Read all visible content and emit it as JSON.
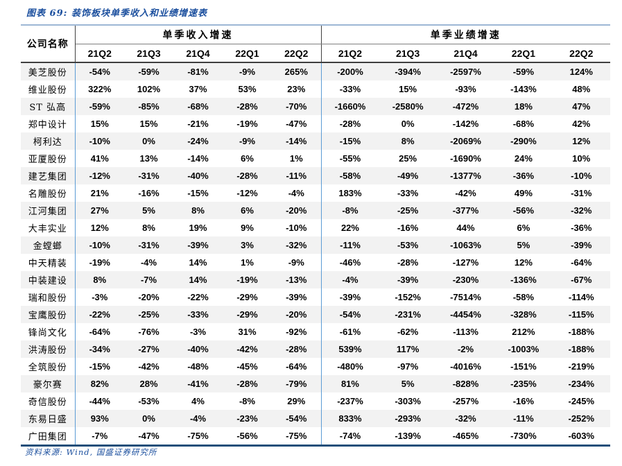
{
  "colors": {
    "accent_blue": "#1B4F9E",
    "table_top_border": "#9DB7D5",
    "table_bottom_border": "#1F4E79",
    "column_divider_blue": "#5B9BD5",
    "header_rule_dark": "#3F3F3F",
    "row_stripe_gray": "#F2F2F2"
  },
  "figure": {
    "title": "图表 69:  装饰板块单季收入和业绩增速表",
    "source": "资料来源: Wind, 国盛证券研究所"
  },
  "table": {
    "company_header": "公司名称",
    "groups": [
      "单季收入增速",
      "单季业绩增速"
    ],
    "quarters": [
      "21Q2",
      "21Q3",
      "21Q4",
      "22Q1",
      "22Q2"
    ],
    "rows": [
      {
        "company": "美芝股份",
        "revenue": [
          "-54%",
          "-59%",
          "-81%",
          "-9%",
          "265%"
        ],
        "profit": [
          "-200%",
          "-394%",
          "-2597%",
          "-59%",
          "124%"
        ]
      },
      {
        "company": "维业股份",
        "revenue": [
          "322%",
          "102%",
          "37%",
          "53%",
          "23%"
        ],
        "profit": [
          "-33%",
          "15%",
          "-93%",
          "-143%",
          "48%"
        ]
      },
      {
        "company": "ST 弘高",
        "revenue": [
          "-59%",
          "-85%",
          "-68%",
          "-28%",
          "-70%"
        ],
        "profit": [
          "-1660%",
          "-2580%",
          "-472%",
          "18%",
          "47%"
        ]
      },
      {
        "company": "郑中设计",
        "revenue": [
          "15%",
          "15%",
          "-21%",
          "-19%",
          "-47%"
        ],
        "profit": [
          "-28%",
          "0%",
          "-142%",
          "-68%",
          "42%"
        ]
      },
      {
        "company": "柯利达",
        "revenue": [
          "-10%",
          "0%",
          "-24%",
          "-9%",
          "-14%"
        ],
        "profit": [
          "-15%",
          "8%",
          "-2069%",
          "-290%",
          "12%"
        ]
      },
      {
        "company": "亚厦股份",
        "revenue": [
          "41%",
          "13%",
          "-14%",
          "6%",
          "1%"
        ],
        "profit": [
          "-55%",
          "25%",
          "-1690%",
          "24%",
          "10%"
        ]
      },
      {
        "company": "建艺集团",
        "revenue": [
          "-12%",
          "-31%",
          "-40%",
          "-28%",
          "-11%"
        ],
        "profit": [
          "-58%",
          "-49%",
          "-1377%",
          "-36%",
          "-10%"
        ]
      },
      {
        "company": "名雕股份",
        "revenue": [
          "21%",
          "-16%",
          "-15%",
          "-12%",
          "-4%"
        ],
        "profit": [
          "183%",
          "-33%",
          "-42%",
          "49%",
          "-31%"
        ]
      },
      {
        "company": "江河集团",
        "revenue": [
          "27%",
          "5%",
          "8%",
          "6%",
          "-20%"
        ],
        "profit": [
          "-8%",
          "-25%",
          "-377%",
          "-56%",
          "-32%"
        ]
      },
      {
        "company": "大丰实业",
        "revenue": [
          "12%",
          "8%",
          "19%",
          "9%",
          "-10%"
        ],
        "profit": [
          "22%",
          "-16%",
          "44%",
          "6%",
          "-36%"
        ]
      },
      {
        "company": "金螳螂",
        "revenue": [
          "-10%",
          "-31%",
          "-39%",
          "3%",
          "-32%"
        ],
        "profit": [
          "-11%",
          "-53%",
          "-1063%",
          "5%",
          "-39%"
        ]
      },
      {
        "company": "中天精装",
        "revenue": [
          "-19%",
          "-4%",
          "14%",
          "1%",
          "-9%"
        ],
        "profit": [
          "-46%",
          "-28%",
          "-127%",
          "12%",
          "-64%"
        ]
      },
      {
        "company": "中装建设",
        "revenue": [
          "8%",
          "-7%",
          "14%",
          "-19%",
          "-13%"
        ],
        "profit": [
          "-4%",
          "-39%",
          "-230%",
          "-136%",
          "-67%"
        ]
      },
      {
        "company": "瑞和股份",
        "revenue": [
          "-3%",
          "-20%",
          "-22%",
          "-29%",
          "-39%"
        ],
        "profit": [
          "-39%",
          "-152%",
          "-7514%",
          "-58%",
          "-114%"
        ]
      },
      {
        "company": "宝鹰股份",
        "revenue": [
          "-22%",
          "-25%",
          "-33%",
          "-29%",
          "-20%"
        ],
        "profit": [
          "-54%",
          "-231%",
          "-4454%",
          "-328%",
          "-115%"
        ]
      },
      {
        "company": "锋尚文化",
        "revenue": [
          "-64%",
          "-76%",
          "-3%",
          "31%",
          "-92%"
        ],
        "profit": [
          "-61%",
          "-62%",
          "-113%",
          "212%",
          "-188%"
        ]
      },
      {
        "company": "洪涛股份",
        "revenue": [
          "-34%",
          "-27%",
          "-40%",
          "-42%",
          "-28%"
        ],
        "profit": [
          "539%",
          "117%",
          "-2%",
          "-1003%",
          "-188%"
        ]
      },
      {
        "company": "全筑股份",
        "revenue": [
          "-15%",
          "-42%",
          "-48%",
          "-45%",
          "-64%"
        ],
        "profit": [
          "-480%",
          "-97%",
          "-4016%",
          "-151%",
          "-219%"
        ]
      },
      {
        "company": "豪尔赛",
        "revenue": [
          "82%",
          "28%",
          "-41%",
          "-28%",
          "-79%"
        ],
        "profit": [
          "81%",
          "5%",
          "-828%",
          "-235%",
          "-234%"
        ]
      },
      {
        "company": "奇信股份",
        "revenue": [
          "-44%",
          "-53%",
          "4%",
          "-8%",
          "29%"
        ],
        "profit": [
          "-237%",
          "-303%",
          "-257%",
          "-16%",
          "-245%"
        ]
      },
      {
        "company": "东易日盛",
        "revenue": [
          "93%",
          "0%",
          "-4%",
          "-23%",
          "-54%"
        ],
        "profit": [
          "833%",
          "-293%",
          "-32%",
          "-11%",
          "-252%"
        ]
      },
      {
        "company": "广田集团",
        "revenue": [
          "-7%",
          "-47%",
          "-75%",
          "-56%",
          "-75%"
        ],
        "profit": [
          "-74%",
          "-139%",
          "-465%",
          "-730%",
          "-603%"
        ]
      }
    ]
  }
}
